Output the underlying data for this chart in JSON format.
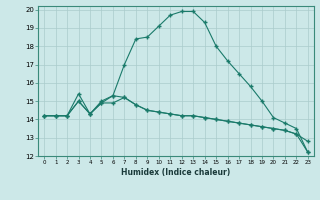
{
  "xlabel": "Humidex (Indice chaleur)",
  "ylabel": "",
  "bg_color": "#cce8e8",
  "grid_color": "#aacccc",
  "line_color": "#1a7a6a",
  "xlim": [
    -0.5,
    23.5
  ],
  "ylim": [
    12,
    20.2
  ],
  "xticks": [
    0,
    1,
    2,
    3,
    4,
    5,
    6,
    7,
    8,
    9,
    10,
    11,
    12,
    13,
    14,
    15,
    16,
    17,
    18,
    19,
    20,
    21,
    22,
    23
  ],
  "yticks": [
    12,
    13,
    14,
    15,
    16,
    17,
    18,
    19,
    20
  ],
  "series": [
    {
      "x": [
        0,
        1,
        2,
        3,
        4,
        5,
        6,
        7,
        8,
        9,
        10,
        11,
        12,
        13,
        14,
        15,
        16,
        17,
        18,
        19,
        20,
        21,
        22,
        23
      ],
      "y": [
        14.2,
        14.2,
        14.2,
        15.0,
        14.3,
        15.0,
        15.3,
        15.2,
        14.8,
        14.5,
        14.4,
        14.3,
        14.2,
        14.2,
        14.1,
        14.0,
        13.9,
        13.8,
        13.7,
        13.6,
        13.5,
        13.4,
        13.2,
        12.8
      ]
    },
    {
      "x": [
        0,
        1,
        2,
        3,
        4,
        5,
        6,
        7,
        8,
        9,
        10,
        11,
        12,
        13,
        14,
        15,
        16,
        17,
        18,
        19,
        20,
        21,
        22,
        23
      ],
      "y": [
        14.2,
        14.2,
        14.2,
        15.4,
        14.3,
        14.9,
        15.3,
        17.0,
        18.4,
        18.5,
        19.1,
        19.7,
        19.9,
        19.9,
        19.3,
        18.0,
        17.2,
        16.5,
        15.8,
        15.0,
        14.1,
        13.8,
        13.5,
        12.2
      ]
    },
    {
      "x": [
        0,
        1,
        2,
        3,
        4,
        5,
        6,
        7,
        8,
        9,
        10,
        11,
        12,
        13,
        14,
        15,
        16,
        17,
        18,
        19,
        20,
        21,
        22,
        23
      ],
      "y": [
        14.2,
        14.2,
        14.2,
        15.0,
        14.3,
        14.9,
        14.9,
        15.2,
        14.8,
        14.5,
        14.4,
        14.3,
        14.2,
        14.2,
        14.1,
        14.0,
        13.9,
        13.8,
        13.7,
        13.6,
        13.5,
        13.4,
        13.2,
        12.2
      ]
    }
  ]
}
